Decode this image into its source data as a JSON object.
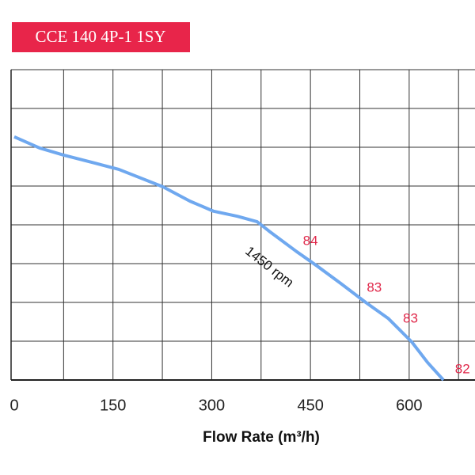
{
  "chart_data": {
    "type": "line",
    "title": "CCE 140 4P-1 1SY",
    "xlabel": "Flow Rate (m³/h)",
    "xlim": [
      0,
      700
    ],
    "ylim": [
      0,
      8
    ],
    "xticks": [
      0,
      150,
      300,
      450,
      600
    ],
    "xgrid": [
      75,
      150,
      225,
      300,
      375,
      450,
      525,
      600,
      675
    ],
    "ygrid": [
      1,
      2,
      3,
      4,
      5,
      6,
      7,
      8
    ],
    "series": [
      {
        "name": "1450 rpm",
        "color": "#6fa8ef",
        "x": [
          0,
          38.5,
          74.6,
          122.7,
          158.8,
          226,
          267,
          303,
          339,
          369,
          387,
          429,
          460,
          496,
          534,
          568,
          604,
          628,
          652
        ],
        "values": [
          6.27,
          5.98,
          5.8,
          5.59,
          5.43,
          4.98,
          4.61,
          4.35,
          4.22,
          4.08,
          3.84,
          3.31,
          2.94,
          2.49,
          2.0,
          1.59,
          0.98,
          0.45,
          0
        ]
      }
    ],
    "annotations": [
      {
        "text": "1450 rpm",
        "x": 387,
        "y": 2.9
      },
      {
        "text": "84",
        "x": 450,
        "y": 3.57
      },
      {
        "text": "83",
        "x": 547,
        "y": 2.37
      },
      {
        "text": "83",
        "x": 602,
        "y": 1.57
      },
      {
        "text": "82",
        "x": 681,
        "y": 0.27
      }
    ]
  }
}
